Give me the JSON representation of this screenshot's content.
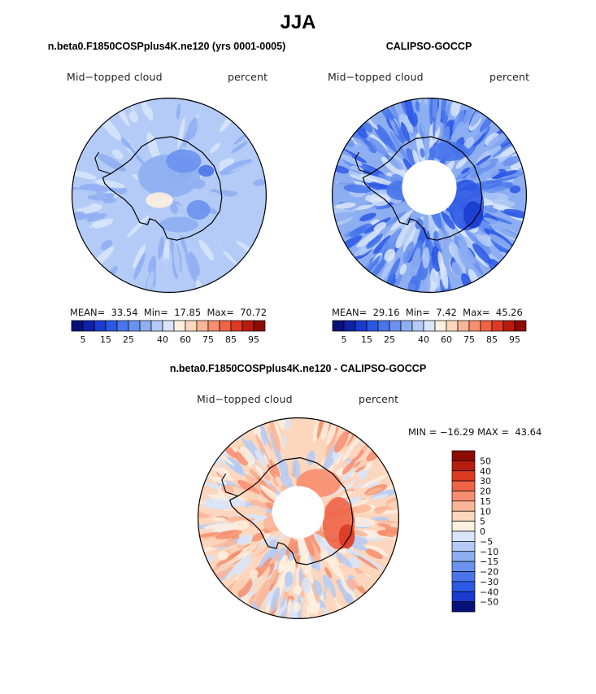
{
  "figure": {
    "season_title": "JJA",
    "colors": {
      "continent_outline": "#000000",
      "bar_outline": "#000000"
    }
  },
  "chart_data": [
    {
      "type": "heatmap",
      "projection": "south-polar-stereographic",
      "title": "n.beta0.F1850COSPplus4K.ne120 (yrs 0001-0005)",
      "left_label": "Mid−topped cloud",
      "right_label": "percent",
      "stats": {
        "mean_label": "MEAN=",
        "mean": "33.54",
        "min_label": "Min=",
        "min": "17.85",
        "max_label": "Max=",
        "max": "70.72"
      },
      "colorbar": {
        "orientation": "horizontal",
        "levels": [
          5,
          10,
          15,
          20,
          25,
          30,
          35,
          40,
          50,
          60,
          70,
          75,
          80,
          85,
          90,
          95
        ],
        "tick_labels": [
          "5",
          "15",
          "25",
          "40",
          "60",
          "75",
          "85",
          "95"
        ],
        "colors": [
          "#08107a",
          "#0e22a6",
          "#1a3bd0",
          "#2c58e6",
          "#4876ea",
          "#6a92ee",
          "#8eaef2",
          "#b3cbf6",
          "#d8e5fa",
          "#fdf0e0",
          "#fcd6bd",
          "#fab598",
          "#f78e6f",
          "#f06446",
          "#dc3a22",
          "#b81c0e",
          "#8c0b04"
        ]
      }
    },
    {
      "type": "heatmap",
      "projection": "south-polar-stereographic",
      "title": "CALIPSO-GOCCP",
      "left_label": "Mid−topped cloud",
      "right_label": "percent",
      "stats": {
        "mean_label": "MEAN=",
        "mean": "29.16",
        "min_label": "Min=",
        "min": "7.42",
        "max_label": "Max=",
        "max": "45.26"
      },
      "colorbar": {
        "orientation": "horizontal",
        "levels": [
          5,
          10,
          15,
          20,
          25,
          30,
          35,
          40,
          50,
          60,
          70,
          75,
          80,
          85,
          90,
          95
        ],
        "tick_labels": [
          "5",
          "15",
          "25",
          "40",
          "60",
          "75",
          "85",
          "95"
        ],
        "colors": [
          "#08107a",
          "#0e22a6",
          "#1a3bd0",
          "#2c58e6",
          "#4876ea",
          "#6a92ee",
          "#8eaef2",
          "#b3cbf6",
          "#d8e5fa",
          "#fdf0e0",
          "#fcd6bd",
          "#fab598",
          "#f78e6f",
          "#f06446",
          "#dc3a22",
          "#b81c0e",
          "#8c0b04"
        ]
      }
    },
    {
      "type": "heatmap",
      "projection": "south-polar-stereographic",
      "title": "n.beta0.F1850COSPplus4K.ne120 - CALIPSO-GOCCP",
      "left_label": "Mid−topped cloud",
      "right_label": "percent",
      "stats_text": "MIN = −16.29 MAX =  43.64",
      "colorbar": {
        "orientation": "vertical",
        "tick_labels": [
          "50",
          "40",
          "30",
          "20",
          "15",
          "10",
          "5",
          "0",
          "−5",
          "−10",
          "−15",
          "−20",
          "−30",
          "−40",
          "−50"
        ],
        "colors": [
          "#8c0b04",
          "#b81c0e",
          "#dc3a22",
          "#f06446",
          "#f78e6f",
          "#fab598",
          "#fcd6bd",
          "#fdf0e0",
          "#d8e5fa",
          "#b3cbf6",
          "#8eaef2",
          "#6a92ee",
          "#4876ea",
          "#2c58e6",
          "#1a3bd0",
          "#08107a"
        ]
      }
    }
  ]
}
